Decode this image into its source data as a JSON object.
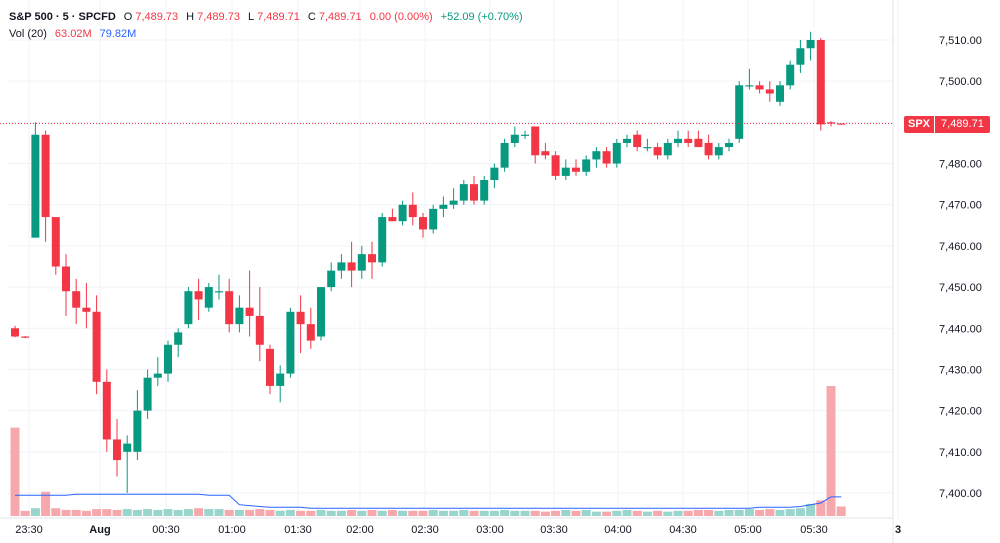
{
  "header": {
    "symbol": "S&P 500 · 5 · SPCFD",
    "open_label": "O",
    "open": "7,489.73",
    "high_label": "H",
    "high": "7,489.73",
    "low_label": "L",
    "low": "7,489.71",
    "close_label": "C",
    "close": "7,489.71",
    "change": "0.00 (0.00%)",
    "change_day": "+52.09 (+0.70%)",
    "vol_label": "Vol (20)",
    "vol_value": "63.02M",
    "vol_ma": "79.82M"
  },
  "last_price_tag": {
    "symbol": "SPX",
    "value": "7,489.71"
  },
  "colors": {
    "up": "#089981",
    "down": "#f23645",
    "up_vol": "#99d5cc",
    "down_vol": "#f7a8ac",
    "ma": "#2962ff",
    "grid": "#f0f3fa"
  },
  "chart_data": {
    "type": "candlestick",
    "title": "S&P 500 · 5 · SPCFD",
    "ylim": [
      7397,
      7514
    ],
    "y_ticks": [
      "7,400.00",
      "7,410.00",
      "7,420.00",
      "7,430.00",
      "7,440.00",
      "7,450.00",
      "7,460.00",
      "7,470.00",
      "7,480.00",
      "7,490.00",
      "7,500.00",
      "7,510.00"
    ],
    "x_ticks": [
      "23:30",
      "Aug",
      "00:30",
      "01:00",
      "01:30",
      "02:00",
      "02:30",
      "03:00",
      "03:30",
      "04:00",
      "04:30",
      "05:00",
      "05:30",
      "3"
    ],
    "last_price": 7489.71,
    "candles": [
      {
        "o": 7440.0,
        "h": 7440.6,
        "l": 7437.8,
        "c": 7438.0
      },
      {
        "o": 7438.0,
        "h": 7438.1,
        "l": 7437.6,
        "c": 7437.9
      },
      {
        "o": 7462.0,
        "h": 7490.0,
        "l": 7462.0,
        "c": 7487.0
      },
      {
        "o": 7487.0,
        "h": 7488.0,
        "l": 7461.0,
        "c": 7467.0
      },
      {
        "o": 7467.0,
        "h": 7467.0,
        "l": 7453.0,
        "c": 7455.0
      },
      {
        "o": 7455.0,
        "h": 7458.0,
        "l": 7443.0,
        "c": 7449.0
      },
      {
        "o": 7449.0,
        "h": 7452.0,
        "l": 7441.0,
        "c": 7445.0
      },
      {
        "o": 7445.0,
        "h": 7451.0,
        "l": 7440.0,
        "c": 7444.0
      },
      {
        "o": 7444.0,
        "h": 7448.0,
        "l": 7424.0,
        "c": 7427.0
      },
      {
        "o": 7427.0,
        "h": 7430.0,
        "l": 7410.0,
        "c": 7413.0
      },
      {
        "o": 7413.0,
        "h": 7418.0,
        "l": 7404.0,
        "c": 7408.0
      },
      {
        "o": 7410.0,
        "h": 7414.0,
        "l": 7400.0,
        "c": 7412.0
      },
      {
        "o": 7410.0,
        "h": 7425.0,
        "l": 7408.0,
        "c": 7420.0
      },
      {
        "o": 7420.0,
        "h": 7430.0,
        "l": 7418.0,
        "c": 7428.0
      },
      {
        "o": 7428.0,
        "h": 7433.0,
        "l": 7426.0,
        "c": 7429.0
      },
      {
        "o": 7429.0,
        "h": 7437.0,
        "l": 7427.0,
        "c": 7436.0
      },
      {
        "o": 7436.0,
        "h": 7440.0,
        "l": 7433.0,
        "c": 7439.0
      },
      {
        "o": 7441.0,
        "h": 7450.0,
        "l": 7440.0,
        "c": 7449.0
      },
      {
        "o": 7449.0,
        "h": 7452.0,
        "l": 7442.0,
        "c": 7447.0
      },
      {
        "o": 7445.0,
        "h": 7451.0,
        "l": 7444.0,
        "c": 7450.0
      },
      {
        "o": 7449.0,
        "h": 7453.0,
        "l": 7447.0,
        "c": 7449.0
      },
      {
        "o": 7449.0,
        "h": 7452.0,
        "l": 7439.0,
        "c": 7441.0
      },
      {
        "o": 7441.0,
        "h": 7448.0,
        "l": 7439.0,
        "c": 7445.0
      },
      {
        "o": 7445.0,
        "h": 7454.0,
        "l": 7438.0,
        "c": 7443.0
      },
      {
        "o": 7443.0,
        "h": 7450.0,
        "l": 7432.0,
        "c": 7436.0
      },
      {
        "o": 7435.0,
        "h": 7436.0,
        "l": 7424.0,
        "c": 7426.0
      },
      {
        "o": 7426.0,
        "h": 7431.0,
        "l": 7422.0,
        "c": 7429.0
      },
      {
        "o": 7429.0,
        "h": 7445.0,
        "l": 7428.0,
        "c": 7444.0
      },
      {
        "o": 7444.0,
        "h": 7448.0,
        "l": 7434.0,
        "c": 7441.0
      },
      {
        "o": 7441.0,
        "h": 7445.0,
        "l": 7435.0,
        "c": 7437.0
      },
      {
        "o": 7438.0,
        "h": 7450.0,
        "l": 7437.0,
        "c": 7450.0
      },
      {
        "o": 7450.0,
        "h": 7456.0,
        "l": 7449.0,
        "c": 7454.0
      },
      {
        "o": 7454.0,
        "h": 7458.0,
        "l": 7452.0,
        "c": 7456.0
      },
      {
        "o": 7456.0,
        "h": 7461.0,
        "l": 7450.0,
        "c": 7454.0
      },
      {
        "o": 7454.0,
        "h": 7460.0,
        "l": 7452.0,
        "c": 7458.0
      },
      {
        "o": 7458.0,
        "h": 7461.0,
        "l": 7452.0,
        "c": 7456.0
      },
      {
        "o": 7456.0,
        "h": 7468.0,
        "l": 7455.0,
        "c": 7467.0
      },
      {
        "o": 7467.0,
        "h": 7469.0,
        "l": 7466.0,
        "c": 7466.0
      },
      {
        "o": 7466.0,
        "h": 7471.0,
        "l": 7465.0,
        "c": 7470.0
      },
      {
        "o": 7470.0,
        "h": 7473.0,
        "l": 7465.0,
        "c": 7467.0
      },
      {
        "o": 7467.0,
        "h": 7468.0,
        "l": 7462.0,
        "c": 7464.0
      },
      {
        "o": 7464.0,
        "h": 7470.0,
        "l": 7463.0,
        "c": 7469.0
      },
      {
        "o": 7469.0,
        "h": 7472.0,
        "l": 7467.0,
        "c": 7470.0
      },
      {
        "o": 7470.0,
        "h": 7474.0,
        "l": 7469.0,
        "c": 7471.0
      },
      {
        "o": 7471.0,
        "h": 7476.0,
        "l": 7470.0,
        "c": 7475.0
      },
      {
        "o": 7475.0,
        "h": 7477.0,
        "l": 7470.0,
        "c": 7471.0
      },
      {
        "o": 7471.0,
        "h": 7477.0,
        "l": 7470.0,
        "c": 7476.0
      },
      {
        "o": 7476.0,
        "h": 7480.0,
        "l": 7474.0,
        "c": 7479.0
      },
      {
        "o": 7479.0,
        "h": 7486.0,
        "l": 7478.0,
        "c": 7485.0
      },
      {
        "o": 7485.0,
        "h": 7489.0,
        "l": 7484.0,
        "c": 7487.0
      },
      {
        "o": 7487.0,
        "h": 7488.0,
        "l": 7486.0,
        "c": 7487.0
      },
      {
        "o": 7489.0,
        "h": 7489.0,
        "l": 7480.0,
        "c": 7482.0
      },
      {
        "o": 7483.0,
        "h": 7485.0,
        "l": 7481.0,
        "c": 7482.0
      },
      {
        "o": 7482.0,
        "h": 7483.0,
        "l": 7476.0,
        "c": 7477.0
      },
      {
        "o": 7477.0,
        "h": 7481.0,
        "l": 7476.0,
        "c": 7479.0
      },
      {
        "o": 7479.0,
        "h": 7481.0,
        "l": 7477.0,
        "c": 7478.0
      },
      {
        "o": 7478.0,
        "h": 7482.0,
        "l": 7477.0,
        "c": 7481.0
      },
      {
        "o": 7481.0,
        "h": 7484.0,
        "l": 7479.0,
        "c": 7483.0
      },
      {
        "o": 7483.0,
        "h": 7484.0,
        "l": 7479.0,
        "c": 7480.0
      },
      {
        "o": 7480.0,
        "h": 7486.0,
        "l": 7479.0,
        "c": 7485.0
      },
      {
        "o": 7485.0,
        "h": 7487.0,
        "l": 7484.0,
        "c": 7486.0
      },
      {
        "o": 7487.0,
        "h": 7488.0,
        "l": 7483.0,
        "c": 7484.0
      },
      {
        "o": 7484.0,
        "h": 7486.0,
        "l": 7483.0,
        "c": 7484.0
      },
      {
        "o": 7484.0,
        "h": 7485.0,
        "l": 7481.0,
        "c": 7482.0
      },
      {
        "o": 7482.0,
        "h": 7486.0,
        "l": 7481.0,
        "c": 7485.0
      },
      {
        "o": 7485.0,
        "h": 7488.0,
        "l": 7484.0,
        "c": 7486.0
      },
      {
        "o": 7486.0,
        "h": 7488.0,
        "l": 7484.0,
        "c": 7485.0
      },
      {
        "o": 7486.0,
        "h": 7488.0,
        "l": 7484.0,
        "c": 7484.0
      },
      {
        "o": 7485.0,
        "h": 7487.0,
        "l": 7481.0,
        "c": 7482.0
      },
      {
        "o": 7482.0,
        "h": 7485.0,
        "l": 7481.0,
        "c": 7484.0
      },
      {
        "o": 7484.0,
        "h": 7486.0,
        "l": 7483.0,
        "c": 7485.0
      },
      {
        "o": 7486.0,
        "h": 7500.0,
        "l": 7485.0,
        "c": 7499.0
      },
      {
        "o": 7499.0,
        "h": 7503.0,
        "l": 7498.0,
        "c": 7499.0
      },
      {
        "o": 7499.0,
        "h": 7500.0,
        "l": 7497.0,
        "c": 7498.0
      },
      {
        "o": 7498.0,
        "h": 7500.0,
        "l": 7495.0,
        "c": 7497.0
      },
      {
        "o": 7495.0,
        "h": 7500.0,
        "l": 7494.0,
        "c": 7499.0
      },
      {
        "o": 7499.0,
        "h": 7505.0,
        "l": 7498.0,
        "c": 7504.0
      },
      {
        "o": 7504.0,
        "h": 7510.0,
        "l": 7502.0,
        "c": 7508.0
      },
      {
        "o": 7508.0,
        "h": 7512.0,
        "l": 7505.0,
        "c": 7510.0
      },
      {
        "o": 7510.0,
        "h": 7510.5,
        "l": 7488.0,
        "c": 7489.5
      },
      {
        "o": 7490.0,
        "h": 7490.3,
        "l": 7489.0,
        "c": 7489.7
      },
      {
        "o": 7489.73,
        "h": 7489.73,
        "l": 7489.71,
        "c": 7489.71
      }
    ],
    "volume_series": {
      "name": "Vol (20)",
      "ma_name": "79.82M",
      "last": "63.02M",
      "values": [
        102,
        6,
        9,
        28,
        9,
        7,
        7,
        6,
        8,
        8,
        7,
        8,
        7,
        8,
        7,
        8,
        7,
        8,
        9,
        8,
        8,
        7,
        7,
        7,
        8,
        7,
        6,
        7,
        6,
        6,
        7,
        6,
        6,
        7,
        6,
        7,
        6,
        7,
        6,
        6,
        6,
        7,
        6,
        6,
        7,
        6,
        6,
        6,
        7,
        6,
        6,
        6,
        5,
        6,
        7,
        6,
        7,
        5,
        5,
        6,
        7,
        6,
        5,
        6,
        5,
        6,
        6,
        7,
        7,
        6,
        7,
        7,
        8,
        7,
        8,
        7,
        8,
        9,
        14,
        18,
        150,
        11
      ],
      "ma": [
        24,
        24,
        24,
        24,
        24,
        24,
        25,
        25,
        25,
        25,
        25,
        25,
        25,
        25,
        25,
        25,
        25,
        25,
        25,
        24,
        24,
        24,
        13,
        12,
        11,
        10,
        10,
        10,
        10,
        9,
        9,
        9,
        9,
        9,
        9,
        9,
        9,
        9,
        9,
        9,
        9,
        9,
        9,
        9,
        9,
        9,
        9,
        9,
        9,
        9,
        9,
        9,
        9,
        9,
        9,
        9,
        9,
        9,
        9,
        9,
        9,
        9,
        9,
        9,
        9,
        9,
        9,
        9,
        9,
        9,
        9,
        9,
        9,
        10,
        10,
        10,
        10,
        11,
        13,
        15,
        22,
        22
      ],
      "ylim": [
        0,
        150
      ]
    }
  }
}
